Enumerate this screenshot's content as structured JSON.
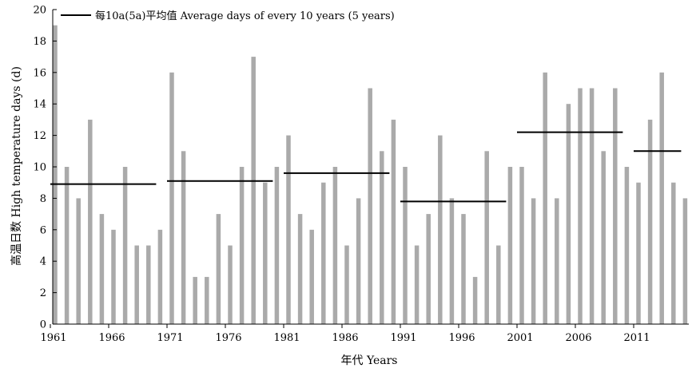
{
  "chart_data": {
    "type": "bar",
    "ylabel": "高温日数 High temperature days (d)",
    "xlabel": "年代 Years",
    "ylim": [
      0,
      20
    ],
    "y_ticks": [
      0,
      2,
      4,
      6,
      8,
      10,
      12,
      14,
      16,
      18,
      20
    ],
    "x_range": [
      1961,
      2015
    ],
    "x_ticks": [
      1961,
      1966,
      1971,
      1976,
      1981,
      1986,
      1991,
      1996,
      2001,
      2006,
      2011
    ],
    "legend": {
      "position": "top-left",
      "label": "每10a(5a)平均值 Average days of every 10 years (5 years)"
    },
    "bar_color": "#aaaaaa",
    "line_color": "#000000",
    "series": [
      {
        "type": "bar",
        "years": [
          1961,
          1962,
          1963,
          1964,
          1965,
          1966,
          1967,
          1968,
          1969,
          1970,
          1971,
          1972,
          1973,
          1974,
          1975,
          1976,
          1977,
          1978,
          1979,
          1980,
          1981,
          1982,
          1983,
          1984,
          1985,
          1986,
          1987,
          1988,
          1989,
          1990,
          1991,
          1992,
          1993,
          1994,
          1995,
          1996,
          1997,
          1998,
          1999,
          2000,
          2001,
          2002,
          2003,
          2004,
          2005,
          2006,
          2007,
          2008,
          2009,
          2010,
          2011,
          2012,
          2013,
          2014,
          2015
        ],
        "values": [
          19,
          10,
          8,
          13,
          7,
          6,
          10,
          5,
          5,
          6,
          16,
          11,
          3,
          3,
          7,
          5,
          10,
          17,
          9,
          10,
          12,
          7,
          6,
          9,
          10,
          5,
          8,
          15,
          11,
          13,
          10,
          5,
          7,
          12,
          8,
          7,
          3,
          11,
          5,
          10,
          10,
          8,
          16,
          8,
          14,
          15,
          15,
          11,
          15,
          10,
          9,
          13,
          16,
          9,
          8
        ]
      },
      {
        "name": "每10a(5a)平均值 Average days of every 10 years (5 years)",
        "type": "segments",
        "segments": [
          {
            "start": 1961,
            "end": 1970,
            "value": 8.9
          },
          {
            "start": 1971,
            "end": 1980,
            "value": 9.1
          },
          {
            "start": 1981,
            "end": 1990,
            "value": 9.6
          },
          {
            "start": 1991,
            "end": 2000,
            "value": 7.8
          },
          {
            "start": 2001,
            "end": 2010,
            "value": 12.2
          },
          {
            "start": 2011,
            "end": 2015,
            "value": 11.0
          }
        ]
      }
    ]
  }
}
